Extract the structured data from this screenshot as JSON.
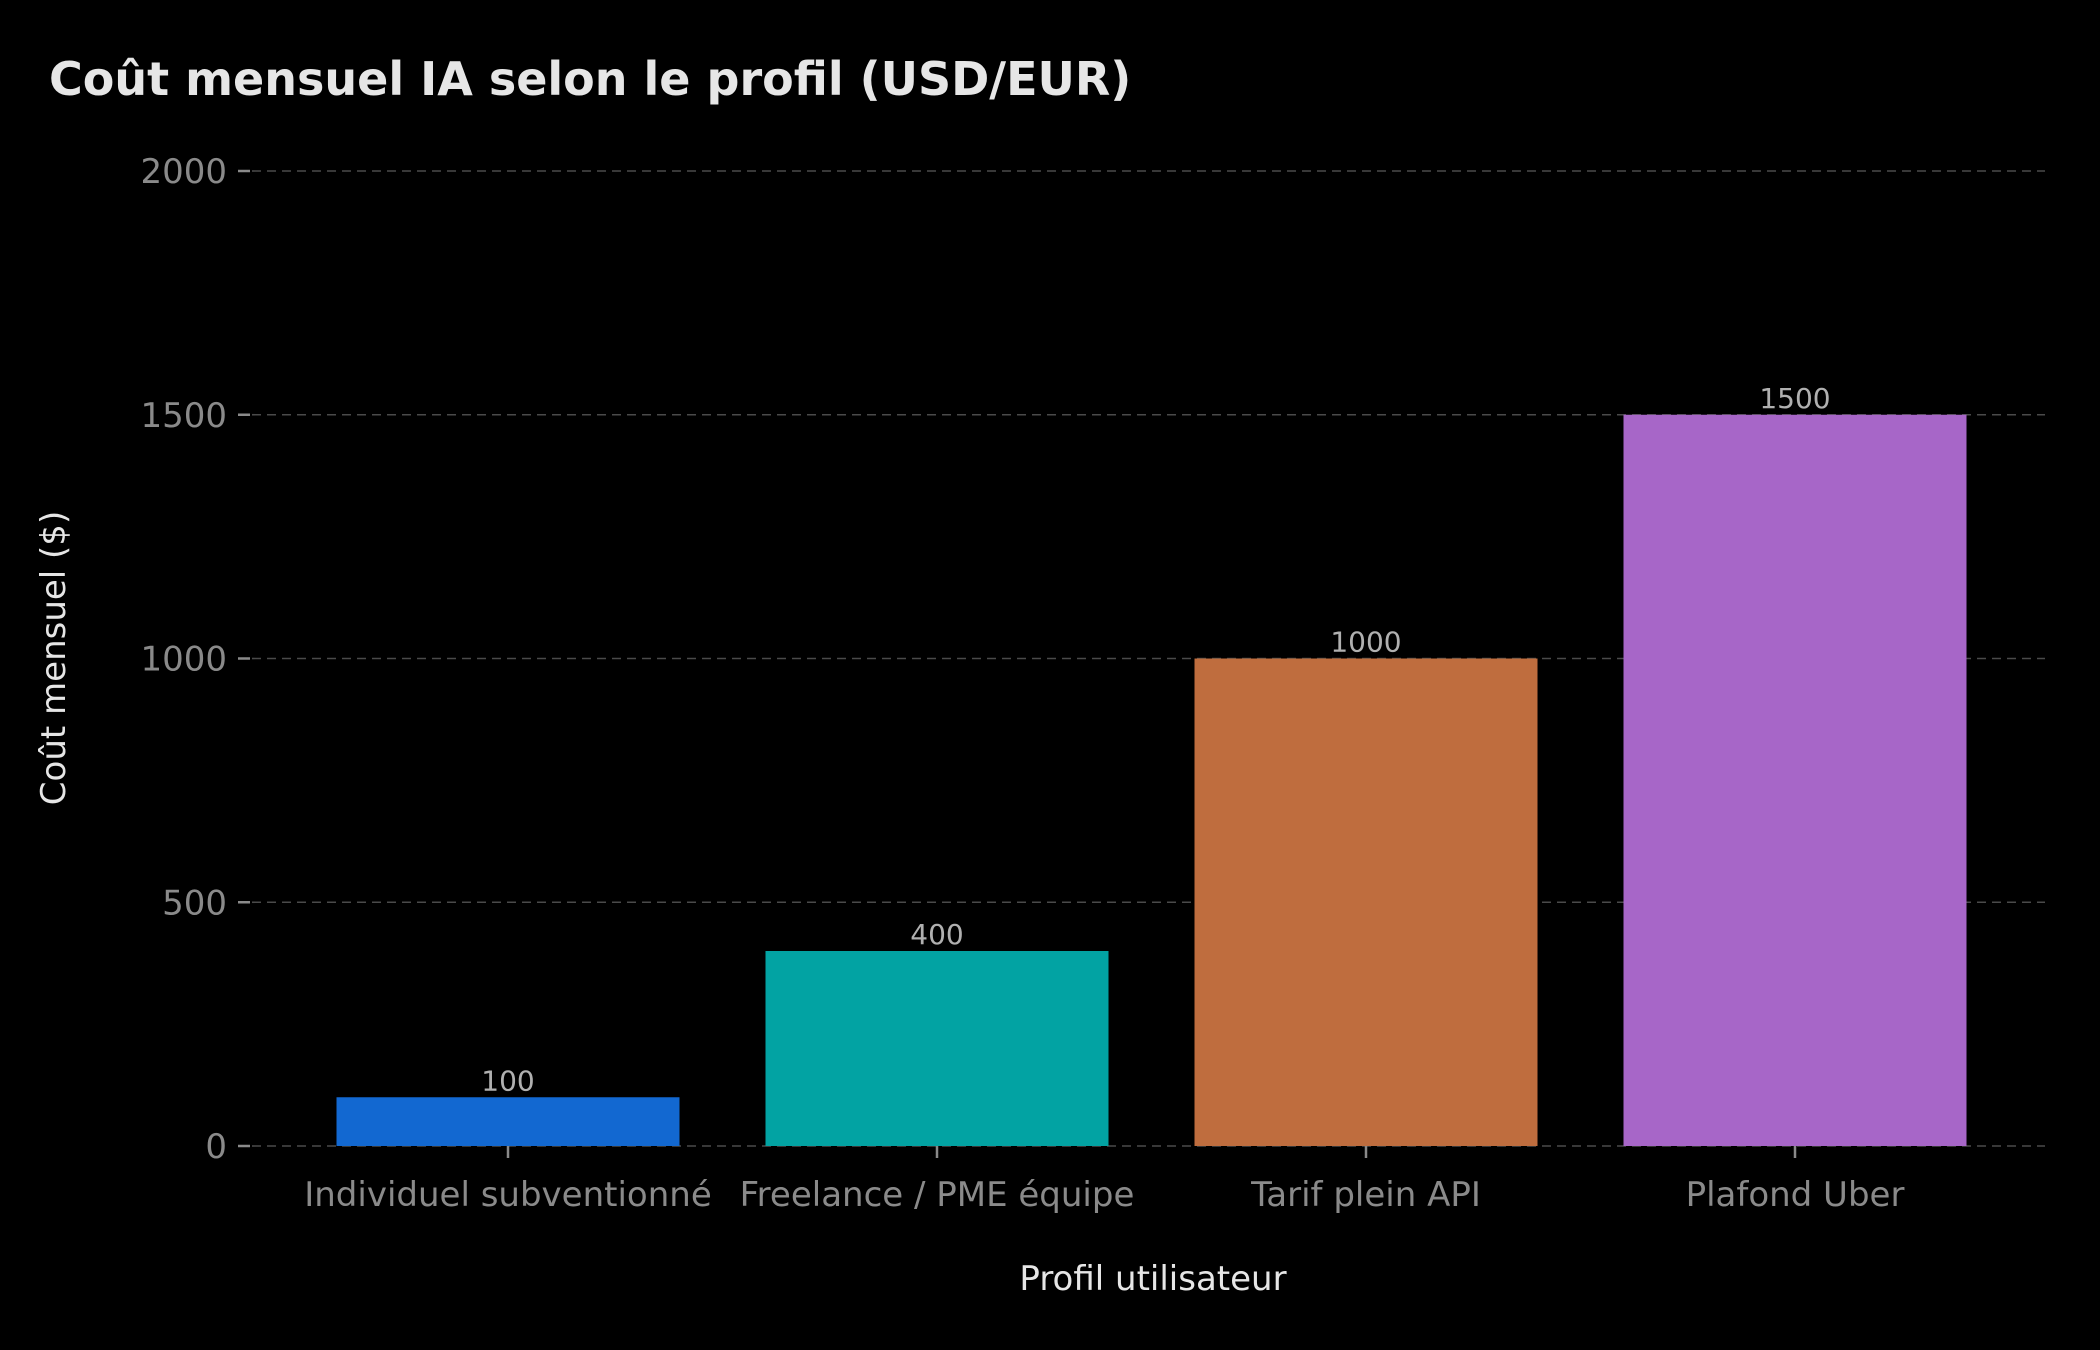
{
  "chart_data": {
    "type": "bar",
    "title": "Coût mensuel IA selon le profil (USD/EUR)",
    "xlabel": "Profil utilisateur",
    "ylabel": "Coût mensuel ($)",
    "categories": [
      "Individuel subventionné",
      "Freelance / PME équipe",
      "Tarif plein API",
      "Plafond Uber"
    ],
    "values": [
      100,
      400,
      1000,
      1500
    ],
    "value_labels": [
      "100",
      "400",
      "1000",
      "1500"
    ],
    "bar_colors": [
      "#1268d1",
      "#02a3a3",
      "#bf6d3e",
      "#a766c8"
    ],
    "ylim": [
      0,
      2000
    ],
    "yticks": [
      0,
      500,
      1000,
      1500,
      2000
    ],
    "ytick_labels": [
      "0",
      "500",
      "1000",
      "1500",
      "2000"
    ],
    "grid": "horizontal-dashed",
    "legend": "none"
  },
  "colors": {
    "background": "#000000",
    "title": "#e6e6e6",
    "axis_label": "#e6e6e6",
    "tick_label": "#8a8a8a",
    "value_label": "#b0b0b0",
    "grid": "#4a4a4a",
    "tick": "#8a8a8a"
  }
}
